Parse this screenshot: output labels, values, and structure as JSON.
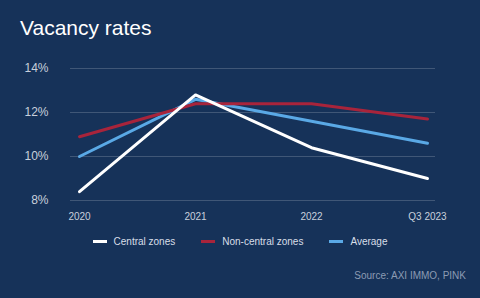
{
  "chart_data": {
    "type": "line",
    "title": "Vacancy rates",
    "categories": [
      "2020",
      "2021",
      "2022",
      "Q3 2023"
    ],
    "series": [
      {
        "name": "Central zones",
        "color": "#ffffff",
        "values": [
          8.4,
          12.8,
          10.4,
          9.0
        ]
      },
      {
        "name": "Non-central zones",
        "color": "#a8243b",
        "values": [
          10.9,
          12.4,
          12.4,
          11.7
        ]
      },
      {
        "name": "Average",
        "color": "#5aa9e6",
        "values": [
          10.0,
          12.6,
          11.6,
          10.6
        ]
      }
    ],
    "ylim": [
      8,
      14
    ],
    "yticks": [
      {
        "value": 8,
        "label": "8%"
      },
      {
        "value": 10,
        "label": "10%"
      },
      {
        "value": 12,
        "label": "12%"
      },
      {
        "value": 14,
        "label": "14%"
      }
    ],
    "grid": true,
    "legend": "bottom",
    "source": "Source: AXI IMMO, PINK"
  }
}
